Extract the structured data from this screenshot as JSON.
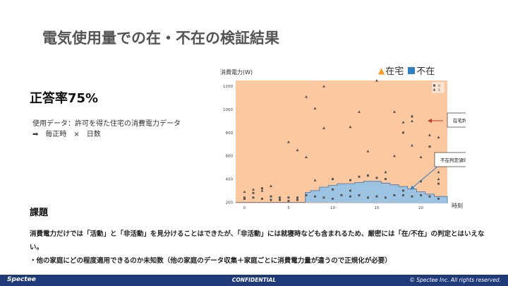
{
  "slide": {
    "title": "電気使用量での在・不在の検証結果",
    "accuracy": "正答率75%",
    "data_line1": "使用データ：許可を得た住宅の消費電力データ",
    "data_line2": "毎正時　×　日数",
    "issue_heading": "課題",
    "issue_text": "消費電力だけでは「活動」と「非活動」を見分けることはできたが、「非活動」には就寝時なども含まれるため、厳密には「在/不在」の判定とはいえない。",
    "issue_note": "・他の家庭にどの程度適用できるのか未知数（他の家庭のデータ収集＋家庭ごとに消費電力量が違うので正規化が必要）"
  },
  "legend": {
    "present_label": "在宅",
    "absent_label": "不在"
  },
  "footer": {
    "logo": "Spectee",
    "confidential": "CONFIDENTIAL",
    "copyright": "© Spectee Inc. All rights reserved."
  },
  "colors": {
    "present_region": "#fbc8a0",
    "absent_region": "#9dc3e3",
    "absent_border": "#4a6fa5",
    "marker": "#555555",
    "footer_bg": "#1e3a78"
  },
  "chart_data": {
    "type": "scatter",
    "ylabel": "消費電力(W)",
    "xlabel": "時刻",
    "xlim": [
      -1,
      23
    ],
    "ylim": [
      190,
      1250
    ],
    "x_ticks": [
      0,
      5,
      10,
      15,
      20
    ],
    "y_ticks": [
      200,
      400,
      600,
      800,
      1000,
      1200
    ],
    "inner_legend": [
      "0",
      "1"
    ],
    "region_labels": {
      "present": "在宅判定領域",
      "absent": "不在判定領域"
    },
    "absent_boundary": [
      [
        -1,
        200
      ],
      [
        6.9,
        200
      ],
      [
        6.9,
        285
      ],
      [
        7.5,
        285
      ],
      [
        7.5,
        300
      ],
      [
        8.5,
        300
      ],
      [
        8.5,
        330
      ],
      [
        9.5,
        330
      ],
      [
        9.5,
        345
      ],
      [
        10.5,
        345
      ],
      [
        10.5,
        360
      ],
      [
        12.5,
        360
      ],
      [
        12.5,
        370
      ],
      [
        13.5,
        370
      ],
      [
        13.5,
        380
      ],
      [
        15.5,
        380
      ],
      [
        15.5,
        365
      ],
      [
        16.5,
        365
      ],
      [
        16.5,
        350
      ],
      [
        17.5,
        350
      ],
      [
        17.5,
        335
      ],
      [
        18.5,
        335
      ],
      [
        18.5,
        315
      ],
      [
        19.5,
        315
      ],
      [
        19.5,
        290
      ],
      [
        20.5,
        290
      ],
      [
        20.5,
        270
      ],
      [
        21.5,
        270
      ],
      [
        21.5,
        250
      ],
      [
        23,
        250
      ],
      [
        23,
        190
      ]
    ],
    "series": [
      {
        "name": "1",
        "marker": "triangle",
        "points": [
          [
            0,
            290
          ],
          [
            1,
            310
          ],
          [
            2,
            300
          ],
          [
            3,
            340
          ],
          [
            5,
            720
          ],
          [
            6,
            650
          ],
          [
            7,
            1110
          ],
          [
            7,
            590
          ],
          [
            8,
            1010
          ],
          [
            8,
            390
          ],
          [
            9,
            1200
          ],
          [
            9,
            840
          ],
          [
            12,
            850
          ],
          [
            13,
            980
          ],
          [
            14,
            640
          ],
          [
            15,
            1250
          ],
          [
            16,
            460
          ],
          [
            17,
            600
          ],
          [
            17,
            980
          ],
          [
            18,
            890
          ],
          [
            19,
            900
          ],
          [
            19,
            690
          ],
          [
            20,
            590
          ],
          [
            21,
            780
          ],
          [
            22,
            760
          ],
          [
            22,
            460
          ],
          [
            22,
            400
          ]
        ]
      },
      {
        "name": "0",
        "marker": "square",
        "points": [
          [
            0,
            240
          ],
          [
            0,
            230
          ],
          [
            1,
            280
          ],
          [
            1,
            240
          ],
          [
            2,
            320
          ],
          [
            2,
            230
          ],
          [
            3,
            250
          ],
          [
            3,
            220
          ],
          [
            4,
            240
          ],
          [
            4,
            220
          ],
          [
            5,
            240
          ],
          [
            5,
            210
          ],
          [
            6,
            240
          ],
          [
            6,
            220
          ],
          [
            7,
            260
          ],
          [
            8,
            250
          ],
          [
            9,
            240
          ],
          [
            10,
            400
          ],
          [
            10,
            310
          ],
          [
            10,
            230
          ],
          [
            11,
            260
          ],
          [
            12,
            390
          ],
          [
            12,
            300
          ],
          [
            12,
            250
          ],
          [
            13,
            420
          ],
          [
            13,
            260
          ],
          [
            14,
            430
          ],
          [
            14,
            240
          ],
          [
            15,
            410
          ],
          [
            15,
            250
          ],
          [
            16,
            400
          ],
          [
            16,
            240
          ],
          [
            17,
            260
          ],
          [
            18,
            800
          ],
          [
            18,
            300
          ],
          [
            18,
            260
          ],
          [
            19,
            940
          ],
          [
            19,
            250
          ],
          [
            20,
            380
          ],
          [
            20,
            260
          ],
          [
            21,
            680
          ],
          [
            21,
            250
          ],
          [
            22,
            360
          ],
          [
            22,
            230
          ]
        ]
      }
    ]
  }
}
